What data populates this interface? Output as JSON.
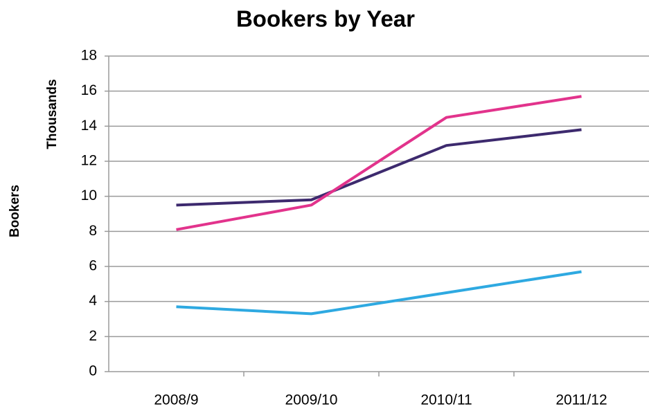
{
  "chart_data": {
    "type": "line",
    "title": "Bookers by Year",
    "y_label": "Bookers",
    "y_unit": "Thousands",
    "categories": [
      "2008/9",
      "2009/10",
      "2010/11",
      "2011/12"
    ],
    "series": [
      {
        "color": "#3d2a6e",
        "values": [
          9.5,
          9.8,
          12.9,
          13.8
        ]
      },
      {
        "color": "#e2338c",
        "values": [
          8.1,
          9.5,
          14.5,
          15.7
        ]
      },
      {
        "color": "#2ea9e1",
        "values": [
          3.7,
          3.3,
          4.5,
          5.7
        ]
      }
    ],
    "ylim": [
      0,
      18
    ],
    "yticks": [
      0,
      2,
      4,
      6,
      8,
      10,
      12,
      14,
      16,
      18
    ],
    "grid": true
  }
}
